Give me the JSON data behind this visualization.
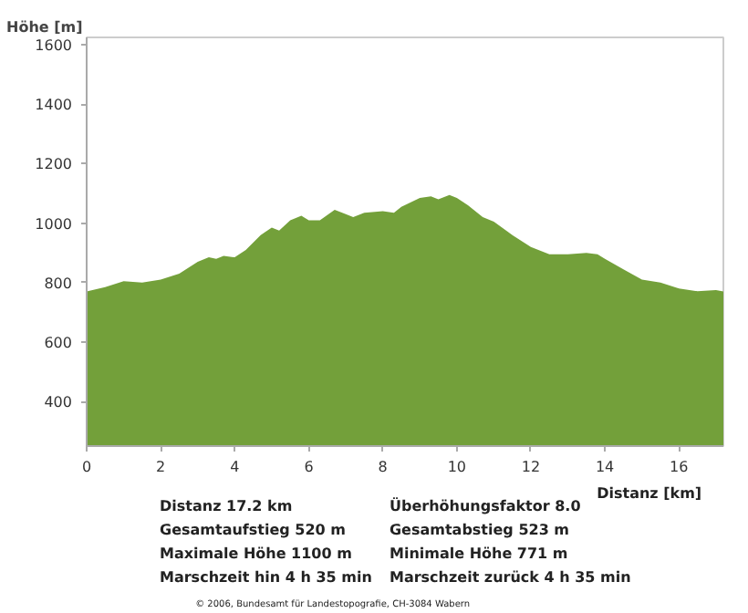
{
  "chart_data": {
    "type": "area",
    "xlabel": "Distanz [km]",
    "ylabel": "Höhe [m]",
    "x": [
      0,
      0.5,
      1,
      1.5,
      2,
      2.5,
      3,
      3.3,
      3.5,
      3.7,
      4,
      4.3,
      4.7,
      5,
      5.2,
      5.5,
      5.8,
      6,
      6.3,
      6.7,
      7,
      7.2,
      7.5,
      8,
      8.3,
      8.5,
      9,
      9.3,
      9.5,
      9.8,
      10,
      10.3,
      10.7,
      11,
      11.5,
      12,
      12.5,
      13,
      13.5,
      13.8,
      14,
      14.5,
      15,
      15.5,
      16,
      16.5,
      17,
      17.2
    ],
    "series": [
      {
        "color": "#73a03a",
        "values": [
          770,
          785,
          805,
          800,
          810,
          830,
          870,
          885,
          880,
          890,
          885,
          910,
          960,
          985,
          975,
          1010,
          1025,
          1010,
          1010,
          1045,
          1030,
          1020,
          1035,
          1040,
          1035,
          1055,
          1085,
          1090,
          1080,
          1095,
          1085,
          1060,
          1020,
          1005,
          960,
          920,
          895,
          895,
          900,
          895,
          880,
          845,
          810,
          800,
          780,
          771,
          775,
          770
        ]
      }
    ],
    "xlim": [
      0,
      17.2
    ],
    "ylim": [
      250,
      1625
    ],
    "xticks": [
      0,
      2,
      4,
      6,
      8,
      10,
      12,
      14,
      16
    ],
    "yticks": [
      400,
      600,
      800,
      1000,
      1200,
      1400,
      1600
    ],
    "grid": false,
    "annotations": [
      "Distanz 17.2 km",
      "Gesamtaufstieg  520 m",
      "Maximale Höhe  1100 m",
      "Marschzeit hin  4 h 35 min",
      "Überhöhungsfaktor 8.0",
      "Gesamtabstieg  523 m",
      "Minimale Höhe  771 m",
      "Marschzeit zurück  4 h 35 min",
      "© 2006, Bundesamt für Landestopografie, CH-3084 Wabern"
    ]
  }
}
